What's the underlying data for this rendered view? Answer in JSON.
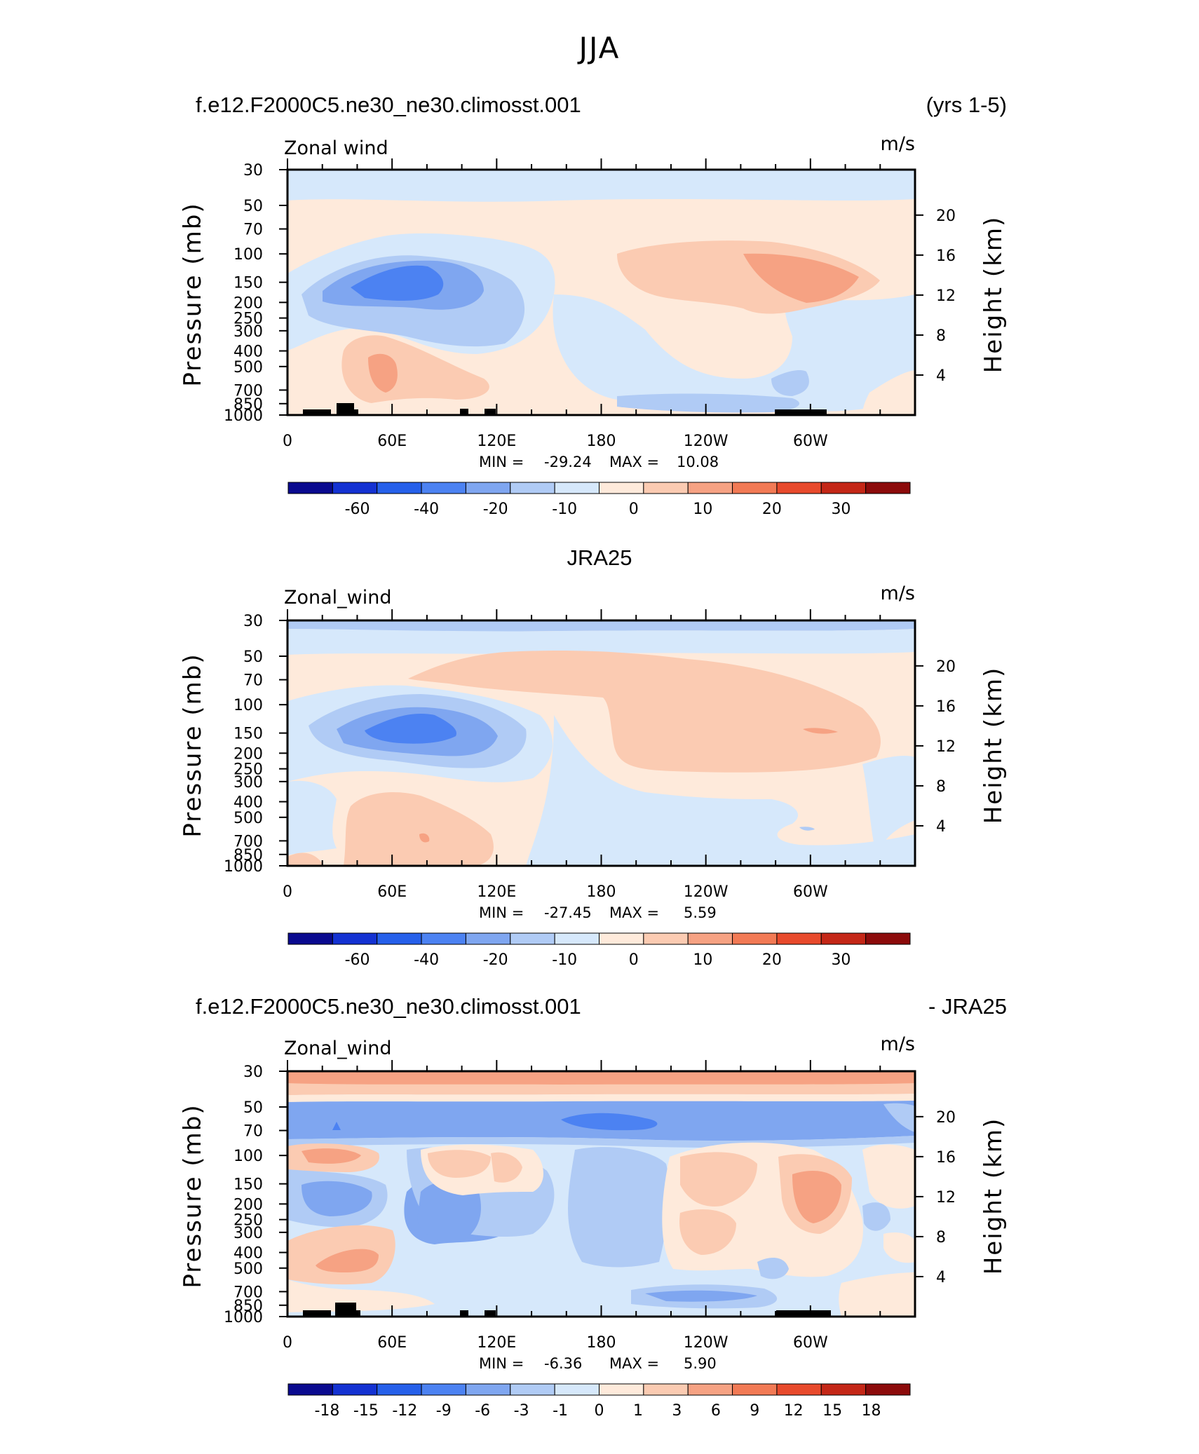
{
  "figure": {
    "title": "JJA",
    "colors": {
      "contour_scale": [
        "#0a0a8f",
        "#1432d2",
        "#2660ea",
        "#4c82f2",
        "#7fa6f0",
        "#b0cbf5",
        "#d6e8fb",
        "#feeadb",
        "#fbcbb2",
        "#f6a283",
        "#f27a55",
        "#e84a2c",
        "#c42717",
        "#8c0b0b"
      ],
      "frame": "#000000",
      "land": "#000000"
    }
  },
  "chart_data": [
    {
      "type": "heatmap",
      "left_title": "f.e12.F2000C5.ne30_ne30.climosst.001",
      "right_title": "(yrs 1-5)",
      "variable": "Zonal wind",
      "units": "m/s",
      "ylabel": "Pressure (mb)",
      "ylabel_right": "Height (km)",
      "x_ticks": [
        "0",
        "60E",
        "120E",
        "180",
        "120W",
        "60W"
      ],
      "x_range": [
        0,
        360
      ],
      "y_ticks": [
        "30",
        "50",
        "70",
        "100",
        "150",
        "200",
        "250",
        "300",
        "400",
        "500",
        "700",
        "850",
        "1000"
      ],
      "y_range": [
        1000,
        30
      ],
      "height_ticks": [
        "20",
        "16",
        "12",
        "8",
        "4"
      ],
      "stats": {
        "min_label": "MIN =",
        "min": "-29.24",
        "max_label": "MAX =",
        "max": "10.08"
      },
      "colorbar_labels": [
        "-60",
        "-40",
        "-20",
        "-10",
        "0",
        "10",
        "20",
        "30"
      ],
      "field_summary": "Westward jet core near 150 mb at 60E-90E (about -29 m/s); weak easterlies aloft at 30 mb; westerlies 0-10 m/s over 180-60W near 100-200 mb"
    },
    {
      "type": "heatmap",
      "left_title": "",
      "center_title": "JRA25",
      "right_title": "",
      "variable": "Zonal_wind",
      "units": "m/s",
      "ylabel": "Pressure (mb)",
      "ylabel_right": "Height (km)",
      "x_ticks": [
        "0",
        "60E",
        "120E",
        "180",
        "120W",
        "60W"
      ],
      "x_range": [
        0,
        360
      ],
      "y_ticks": [
        "30",
        "50",
        "70",
        "100",
        "150",
        "200",
        "250",
        "300",
        "400",
        "500",
        "700",
        "850",
        "1000"
      ],
      "y_range": [
        1000,
        30
      ],
      "height_ticks": [
        "20",
        "16",
        "12",
        "8",
        "4"
      ],
      "stats": {
        "min_label": "MIN =",
        "min": "-27.45",
        "max_label": "MAX =",
        "max": "5.59"
      },
      "colorbar_labels": [
        "-60",
        "-40",
        "-20",
        "-10",
        "0",
        "10",
        "20",
        "30"
      ],
      "field_summary": "Easterly jet near 150 mb at 50E-110E (about -27 m/s); broad weak westerlies from 120E to 60W aloft"
    },
    {
      "type": "heatmap",
      "left_title": "f.e12.F2000C5.ne30_ne30.climosst.001",
      "right_title": "- JRA25",
      "variable": "Zonal_wind",
      "units": "m/s",
      "ylabel": "Pressure (mb)",
      "ylabel_right": "Height (km)",
      "x_ticks": [
        "0",
        "60E",
        "120E",
        "180",
        "120W",
        "60W"
      ],
      "x_range": [
        0,
        360
      ],
      "y_ticks": [
        "30",
        "50",
        "70",
        "100",
        "150",
        "200",
        "250",
        "300",
        "400",
        "500",
        "700",
        "850",
        "1000"
      ],
      "y_range": [
        1000,
        30
      ],
      "height_ticks": [
        "20",
        "16",
        "12",
        "8",
        "4"
      ],
      "stats": {
        "min_label": "MIN =",
        "min": "-6.36",
        "max_label": "MAX =",
        "max": "5.90"
      },
      "colorbar_labels": [
        "-18",
        "-15",
        "-12",
        "-9",
        "-6",
        "-3",
        "-1",
        "0",
        "1",
        "3",
        "6",
        "9",
        "12",
        "15",
        "18"
      ],
      "field_summary": "Positive band at 30 mb; negative band 50-70 mb across all longitudes; mixed differences of about +/-6 m/s below"
    }
  ]
}
